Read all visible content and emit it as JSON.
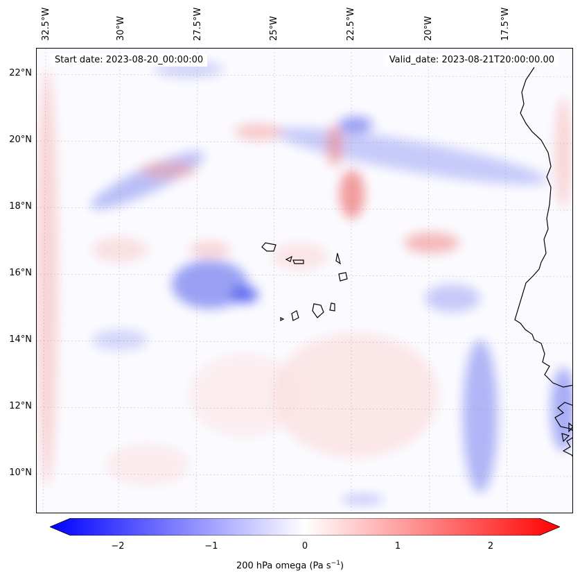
{
  "map": {
    "start_date": "Start date: 2023-08-20_00:00:00",
    "valid_date": "Valid_date: 2023-08-21T20:00:00.00",
    "lon_labels": [
      "32.5°W",
      "30°W",
      "27.5°W",
      "25°W",
      "22.5°W",
      "20°W",
      "17.5°W"
    ],
    "lat_labels": [
      "22°N",
      "20°N",
      "18°N",
      "16°N",
      "14°N",
      "12°N",
      "10°N"
    ],
    "colors": {
      "negative": "#0000ff",
      "zero": "#ffffff",
      "positive": "#ff0000",
      "coast": "#000000"
    }
  },
  "colorbar": {
    "ticks": [
      "−2",
      "−1",
      "0",
      "1",
      "2"
    ],
    "range": [
      -2.75,
      2.75
    ],
    "label": "200 hPa omega (Pa s",
    "label_exp": "−1",
    "label_end": ")"
  }
}
